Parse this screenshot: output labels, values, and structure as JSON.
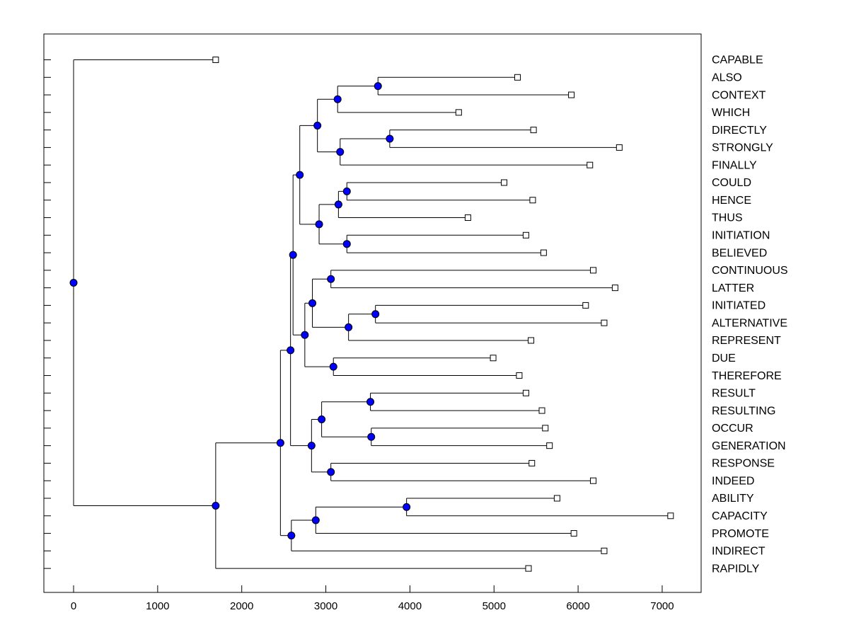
{
  "chart_data": {
    "type": "dendrogram",
    "orientation": "horizontal",
    "title": "",
    "xlabel": "",
    "ylabel": "",
    "xlim": [
      -350,
      7450
    ],
    "xticks": [
      0,
      1000,
      2000,
      3000,
      4000,
      5000,
      6000,
      7000
    ],
    "leaf_color": "#ffffff",
    "node_color": "#0000ff",
    "line_color": "#000000",
    "leaves": [
      {
        "id": "CAPABLE",
        "label": "CAPABLE",
        "height": 1690
      },
      {
        "id": "ALSO",
        "label": "ALSO",
        "height": 5280
      },
      {
        "id": "CONTEXT",
        "label": "CONTEXT",
        "height": 5920
      },
      {
        "id": "WHICH",
        "label": "WHICH",
        "height": 4580
      },
      {
        "id": "DIRECTLY",
        "label": "DIRECTLY",
        "height": 5470
      },
      {
        "id": "STRONGLY",
        "label": "STRONGLY",
        "height": 6490
      },
      {
        "id": "FINALLY",
        "label": "FINALLY",
        "height": 6140
      },
      {
        "id": "COULD",
        "label": "COULD",
        "height": 5120
      },
      {
        "id": "HENCE",
        "label": "HENCE",
        "height": 5460
      },
      {
        "id": "THUS",
        "label": "THUS",
        "height": 4690
      },
      {
        "id": "INITIATION",
        "label": "INITIATION",
        "height": 5380
      },
      {
        "id": "BELIEVED",
        "label": "BELIEVED",
        "height": 5590
      },
      {
        "id": "CONTINUOUS",
        "label": "CONTINUOUS",
        "height": 6180
      },
      {
        "id": "LATTER",
        "label": "LATTER",
        "height": 6440
      },
      {
        "id": "INITIATED",
        "label": "INITIATED",
        "height": 6090
      },
      {
        "id": "ALTERNATIVE",
        "label": "ALTERNATIVE",
        "height": 6310
      },
      {
        "id": "REPRESENT",
        "label": "REPRESENT",
        "height": 5440
      },
      {
        "id": "DUE",
        "label": "DUE",
        "height": 4990
      },
      {
        "id": "THEREFORE",
        "label": "THEREFORE",
        "height": 5300
      },
      {
        "id": "RESULT",
        "label": "RESULT",
        "height": 5380
      },
      {
        "id": "RESULTING",
        "label": "RESULTING",
        "height": 5570
      },
      {
        "id": "OCCUR",
        "label": "OCCUR",
        "height": 5610
      },
      {
        "id": "GENERATION",
        "label": "GENERATION",
        "height": 5660
      },
      {
        "id": "RESPONSE",
        "label": "RESPONSE",
        "height": 5450
      },
      {
        "id": "INDEED",
        "label": "INDEED",
        "height": 6180
      },
      {
        "id": "ABILITY",
        "label": "ABILITY",
        "height": 5750
      },
      {
        "id": "CAPACITY",
        "label": "CAPACITY",
        "height": 7100
      },
      {
        "id": "PROMOTE",
        "label": "PROMOTE",
        "height": 5950
      },
      {
        "id": "INDIRECT",
        "label": "INDIRECT",
        "height": 6310
      },
      {
        "id": "RAPIDLY",
        "label": "RAPIDLY",
        "height": 5410
      }
    ],
    "merges": [
      {
        "id": "n_also_context",
        "height": 3620,
        "children": [
          "ALSO",
          "CONTEXT"
        ]
      },
      {
        "id": "n_which",
        "height": 3140,
        "children": [
          "n_also_context",
          "WHICH"
        ]
      },
      {
        "id": "n_directly_strongly",
        "height": 3760,
        "children": [
          "DIRECTLY",
          "STRONGLY"
        ]
      },
      {
        "id": "n_finally",
        "height": 3170,
        "children": [
          "n_directly_strongly",
          "FINALLY"
        ]
      },
      {
        "id": "n_top_group",
        "height": 2900,
        "children": [
          "n_which",
          "n_finally"
        ]
      },
      {
        "id": "n_could_hence",
        "height": 3250,
        "children": [
          "COULD",
          "HENCE"
        ]
      },
      {
        "id": "n_thus",
        "height": 3150,
        "children": [
          "n_could_hence",
          "THUS"
        ]
      },
      {
        "id": "n_initiation_believed",
        "height": 3250,
        "children": [
          "INITIATION",
          "BELIEVED"
        ]
      },
      {
        "id": "n_could_group",
        "height": 2920,
        "children": [
          "n_thus",
          "n_initiation_believed"
        ]
      },
      {
        "id": "n_upper",
        "height": 2690,
        "children": [
          "n_top_group",
          "n_could_group"
        ]
      },
      {
        "id": "n_continuous_latter",
        "height": 3060,
        "children": [
          "CONTINUOUS",
          "LATTER"
        ]
      },
      {
        "id": "n_initiated_alternative",
        "height": 3590,
        "children": [
          "INITIATED",
          "ALTERNATIVE"
        ]
      },
      {
        "id": "n_represent",
        "height": 3270,
        "children": [
          "n_initiated_alternative",
          "REPRESENT"
        ]
      },
      {
        "id": "n_continuous_group",
        "height": 2840,
        "children": [
          "n_continuous_latter",
          "n_represent"
        ]
      },
      {
        "id": "n_due_therefore",
        "height": 3090,
        "children": [
          "DUE",
          "THEREFORE"
        ]
      },
      {
        "id": "n_middle",
        "height": 2750,
        "children": [
          "n_continuous_group",
          "n_due_therefore"
        ]
      },
      {
        "id": "n_upper_middle",
        "height": 2610,
        "children": [
          "n_upper",
          "n_middle"
        ]
      },
      {
        "id": "n_result_resulting",
        "height": 3530,
        "children": [
          "RESULT",
          "RESULTING"
        ]
      },
      {
        "id": "n_occur_generation",
        "height": 3540,
        "children": [
          "OCCUR",
          "GENERATION"
        ]
      },
      {
        "id": "n_result_group",
        "height": 2950,
        "children": [
          "n_result_resulting",
          "n_occur_generation"
        ]
      },
      {
        "id": "n_response_indeed",
        "height": 3060,
        "children": [
          "RESPONSE",
          "INDEED"
        ]
      },
      {
        "id": "n_lower_group",
        "height": 2830,
        "children": [
          "n_result_group",
          "n_response_indeed"
        ]
      },
      {
        "id": "n_big",
        "height": 2580,
        "children": [
          "n_upper_middle",
          "n_lower_group"
        ]
      },
      {
        "id": "n_ability_capacity",
        "height": 3960,
        "children": [
          "ABILITY",
          "CAPACITY"
        ]
      },
      {
        "id": "n_promote",
        "height": 2880,
        "children": [
          "n_ability_capacity",
          "PROMOTE"
        ]
      },
      {
        "id": "n_indirect",
        "height": 2590,
        "children": [
          "n_promote",
          "INDIRECT"
        ]
      },
      {
        "id": "n_main",
        "height": 2460,
        "children": [
          "n_big",
          "n_indirect"
        ]
      },
      {
        "id": "n_rapidly",
        "height": 1690,
        "children": [
          "n_main",
          "RAPIDLY"
        ]
      },
      {
        "id": "n_root",
        "height": 0,
        "children": [
          "CAPABLE",
          "n_rapidly"
        ]
      }
    ]
  }
}
